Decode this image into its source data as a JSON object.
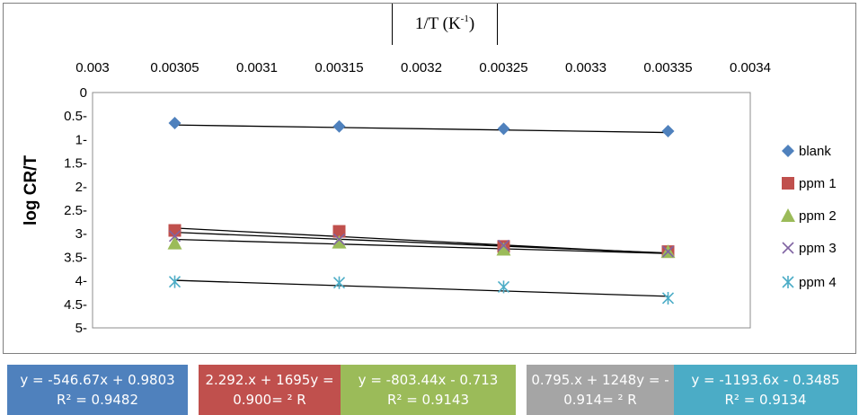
{
  "chart_data": {
    "type": "scatter",
    "title": "1/T (K",
    "title_sup": "-1",
    "title_close": ")",
    "xlabel": "",
    "ylabel": "log CR/T",
    "x_ticks": [
      "0.003",
      "0.00305",
      "0.0031",
      "0.00315",
      "0.0032",
      "0.00325",
      "0.0033",
      "0.00335",
      "0.0034"
    ],
    "y_ticks": [
      "0",
      "0.5-",
      "1-",
      "1.5-",
      "2-",
      "2.5-",
      "3-",
      "3.5-",
      "4-",
      "4.5-",
      "5-"
    ],
    "xlim": [
      0.003,
      0.0034
    ],
    "ylim": [
      0,
      -5
    ],
    "x_axis_position": "top",
    "grid": false,
    "legend_position": "right",
    "x": [
      0.00305,
      0.00315,
      0.00325,
      0.00335
    ],
    "series": [
      {
        "name": "blank",
        "marker": "diamond",
        "color": "#4f81bd",
        "values": [
          -0.65,
          -0.72,
          -0.77,
          -0.82
        ],
        "trend": [
          -0.69,
          -0.85
        ]
      },
      {
        "name": "ppm 1",
        "marker": "square",
        "color": "#c0504d",
        "values": [
          -2.93,
          -2.95,
          -3.27,
          -3.38
        ],
        "trend": [
          -2.88,
          -3.42
        ]
      },
      {
        "name": "ppm 2",
        "marker": "triangle",
        "color": "#9bbb59",
        "values": [
          -3.2,
          -3.18,
          -3.33,
          -3.38
        ],
        "trend": [
          -3.12,
          -3.42
        ]
      },
      {
        "name": "ppm 3",
        "marker": "x",
        "color": "#8064a2",
        "values": [
          -3.05,
          -3.12,
          -3.25,
          -3.38
        ],
        "trend": [
          -2.97,
          -3.41
        ]
      },
      {
        "name": "ppm 4",
        "marker": "star",
        "color": "#4bacc6",
        "values": [
          -4.02,
          -4.04,
          -4.13,
          -4.37
        ],
        "trend": [
          -3.99,
          -4.33
        ]
      }
    ],
    "trendline_color": "#000000"
  },
  "equations": [
    {
      "line1": "y = -546.67x + 0.9803",
      "line2": "R² = 0.9482",
      "bg": "#4f81bd",
      "tone": "dark"
    },
    {
      "line1": "2.292.x + 1695y =",
      "line2": "0.900= ² R",
      "bg": "#c0504d",
      "tone": "dark"
    },
    {
      "line1": "y = -803.44x - 0.713",
      "line2": "R² = 0.9143",
      "bg": "#9bbb59",
      "tone": "dark"
    },
    {
      "line1": "0.795.x + 1248y = -",
      "line2": "0.914= ² R",
      "bg": "#a5a5a5",
      "tone": "dark"
    },
    {
      "line1": "y = -1193.6x - 0.3485",
      "line2": "R² = 0.9134",
      "bg": "#4bacc6",
      "tone": "dark"
    }
  ]
}
